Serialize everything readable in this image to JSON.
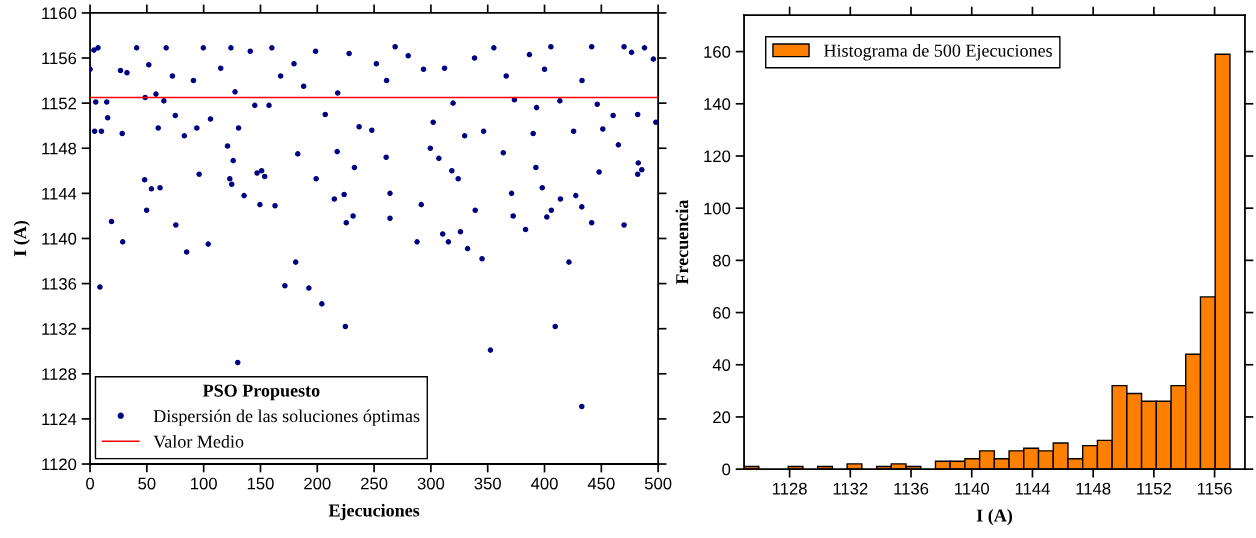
{
  "chart_data": [
    {
      "type": "scatter",
      "xlabel": "Ejecuciones",
      "ylabel": "I (A)",
      "xlim": [
        0,
        500
      ],
      "ylim": [
        1120,
        1160
      ],
      "xticks": [
        0,
        50,
        100,
        150,
        200,
        250,
        300,
        350,
        400,
        450,
        500
      ],
      "yticks": [
        1120,
        1124,
        1128,
        1132,
        1136,
        1140,
        1144,
        1148,
        1152,
        1156,
        1160
      ],
      "marker": "circle",
      "grid": false,
      "legend": "bottom left",
      "legend_title": "PSO Propuesto",
      "series": [
        {
          "name": "Dispersión de las soluciones óptimas",
          "color": "#000080",
          "x": [
            48,
            49.8,
            54,
            61.6,
            18.9,
            28.7,
            75.5,
            85,
            96,
            104,
            121,
            126,
            123,
            124.7,
            135.6,
            147,
            151,
            153.7,
            149.5,
            162.8,
            182.8,
            199,
            215,
            223.6,
            225.5,
            231.5,
            232.7,
            217.5,
            260.6,
            264,
            264,
            287.8,
            291.5,
            299.5,
            307,
            318.4,
            324,
            310.4,
            315.4,
            326,
            332.3,
            339,
            345,
            363.7,
            371,
            372.4,
            383.3,
            392.4,
            398,
            402,
            406,
            414,
            427.5,
            432.8,
            441.5,
            448,
            465,
            470,
            482,
            482.5,
            485.6,
            8.7,
            130,
            171.5,
            181,
            192.6,
            204,
            224.7,
            352.4,
            409.4,
            421.5,
            432.8,
            0,
            3.4,
            7,
            5,
            4,
            10,
            14.7,
            15.5,
            28.3,
            26.8,
            32.5,
            41,
            48.5,
            51.7,
            58,
            60,
            65,
            67,
            72.5,
            75,
            83,
            91,
            94,
            99.7,
            106,
            115,
            124,
            127.6,
            130.7,
            141,
            145,
            157.5,
            160,
            167.7,
            179.5,
            188,
            198.5,
            207,
            218,
            228,
            236.8,
            248,
            252,
            261,
            268.5,
            280,
            293.5,
            302,
            312,
            319.5,
            329.7,
            338.4,
            346.4,
            355.4,
            366.3,
            373.5,
            386.7,
            393,
            390,
            400,
            405.6,
            413.5,
            425.6,
            433,
            441.5,
            446.4,
            451.3,
            460.4,
            470,
            476.6,
            482,
            488,
            495.8,
            498
          ],
          "values": [
            1145.2,
            1142.5,
            1144.4,
            1144.5,
            1141.5,
            1139.7,
            1141.2,
            1138.8,
            1145.7,
            1139.5,
            1148.2,
            1146.9,
            1145.3,
            1144.8,
            1143.8,
            1145.8,
            1146,
            1145.5,
            1143,
            1142.9,
            1147.5,
            1145.3,
            1143.5,
            1143.9,
            1141.4,
            1142,
            1146.3,
            1147.7,
            1147.2,
            1144,
            1141.8,
            1139.7,
            1143,
            1148,
            1147.1,
            1146,
            1145.3,
            1140.4,
            1139.7,
            1140.6,
            1139.1,
            1142.5,
            1138.2,
            1147.6,
            1144,
            1142,
            1140.8,
            1146.3,
            1144.5,
            1141.9,
            1142.5,
            1143.5,
            1143.8,
            1142.8,
            1141.4,
            1145.9,
            1148.3,
            1141.2,
            1145.7,
            1146.7,
            1146.1,
            1135.7,
            1129,
            1135.8,
            1137.9,
            1135.6,
            1134.2,
            1132.2,
            1130.1,
            1132.2,
            1137.9,
            1125.1,
            1155,
            1156.7,
            1156.9,
            1152.1,
            1149.5,
            1149.5,
            1152.1,
            1150.7,
            1149.3,
            1154.9,
            1154.7,
            1156.9,
            1152.5,
            1155.4,
            1152.8,
            1149.8,
            1152.2,
            1156.9,
            1154.4,
            1150.9,
            1149.1,
            1154,
            1149.8,
            1156.9,
            1150.6,
            1155.1,
            1156.9,
            1153,
            1149.8,
            1156.6,
            1151.8,
            1151.8,
            1156.9,
            1154.4,
            1155.5,
            1153.5,
            1156.6,
            1151,
            1152.9,
            1156.4,
            1149.9,
            1149.6,
            1155.5,
            1154,
            1157,
            1156.2,
            1155,
            1150.3,
            1155.1,
            1152,
            1149.1,
            1156,
            1149.5,
            1156.9,
            1154.4,
            1152.3,
            1156.3,
            1151.6,
            1149.3,
            1155,
            1157,
            1152.2,
            1149.5,
            1154,
            1157,
            1151.9,
            1149.7,
            1150.9,
            1157,
            1156.5,
            1151,
            1156.9,
            1155.9,
            1150.3
          ]
        }
      ],
      "ref_lines": [
        {
          "axis": "y",
          "value": 1152.5,
          "label": "Valor Medio",
          "color": "#ff0000",
          "line_style": "solid"
        }
      ]
    },
    {
      "type": "histogram",
      "xlabel": "I (A)",
      "ylabel": "Frecuencia",
      "xlim": [
        1125,
        1158
      ],
      "ylim": [
        0,
        174
      ],
      "xticks": [
        1128,
        1132,
        1136,
        1140,
        1144,
        1148,
        1152,
        1156
      ],
      "yticks": [
        0,
        20,
        40,
        60,
        80,
        100,
        120,
        140,
        160
      ],
      "grid": false,
      "legend": "top left",
      "bins": [
        1125,
        1125.97,
        1126.94,
        1127.91,
        1128.88,
        1129.85,
        1130.82,
        1131.79,
        1132.76,
        1133.73,
        1134.7,
        1135.67,
        1136.64,
        1137.61,
        1138.58,
        1139.55,
        1140.52,
        1141.49,
        1142.46,
        1143.43,
        1144.4,
        1145.37,
        1146.34,
        1147.31,
        1148.28,
        1149.25,
        1150.22,
        1151.19,
        1152.16,
        1153.13,
        1154.1,
        1155.07,
        1156.04,
        1157.01
      ],
      "series": [
        {
          "name": "Histograma de 500 Ejecuciones",
          "color": "#ff8000",
          "values": [
            1,
            0,
            0,
            1,
            0,
            1,
            0,
            2,
            0,
            1,
            2,
            1,
            0,
            3,
            3,
            4,
            7,
            4,
            7,
            8,
            7,
            10,
            4,
            9,
            11,
            32,
            29,
            26,
            26,
            32,
            44,
            66,
            159
          ]
        }
      ]
    }
  ]
}
